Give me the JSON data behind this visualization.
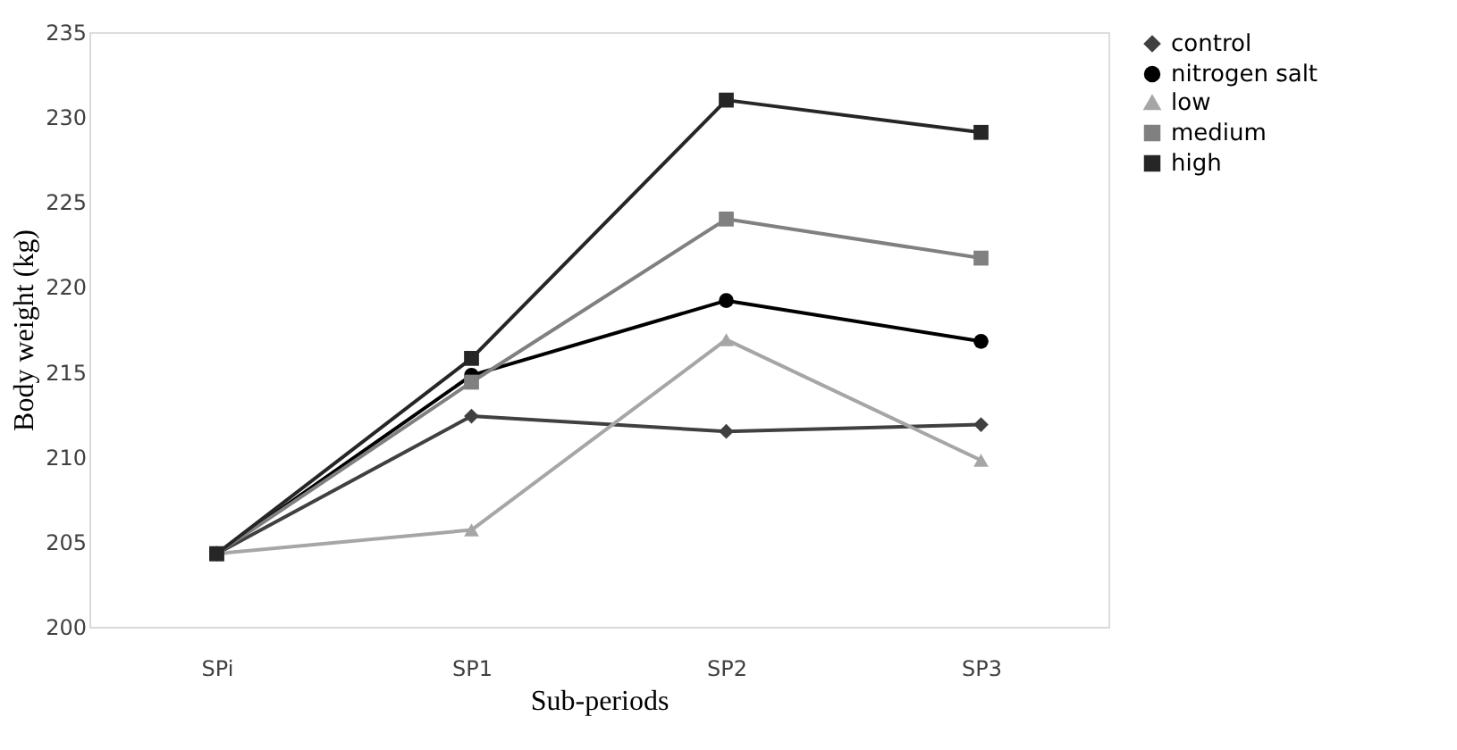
{
  "chart_data": {
    "type": "line",
    "xlabel": "Sub-periods",
    "ylabel": "Body weight (kg)",
    "categories": [
      "SPi",
      "SP1",
      "SP2",
      "SP3"
    ],
    "series": [
      {
        "name": "control",
        "color": "#404040",
        "marker": "diamond",
        "values": [
          204.3,
          212.4,
          211.5,
          211.9
        ]
      },
      {
        "name": "nitrogen salt",
        "color": "#000000",
        "marker": "circle",
        "values": [
          204.3,
          214.8,
          219.2,
          216.8
        ]
      },
      {
        "name": "low",
        "color": "#a6a6a6",
        "marker": "triangle",
        "values": [
          204.3,
          205.7,
          216.9,
          209.8
        ]
      },
      {
        "name": "medium",
        "color": "#808080",
        "marker": "square",
        "values": [
          204.3,
          214.4,
          224.0,
          221.7
        ]
      },
      {
        "name": "high",
        "color": "#262626",
        "marker": "square",
        "values": [
          204.3,
          215.8,
          231.0,
          229.1
        ]
      }
    ],
    "ylim": [
      200,
      235
    ],
    "yticks": [
      200,
      205,
      210,
      215,
      220,
      225,
      230,
      235
    ],
    "grid": false,
    "legend": "right",
    "line_style": "solid"
  }
}
